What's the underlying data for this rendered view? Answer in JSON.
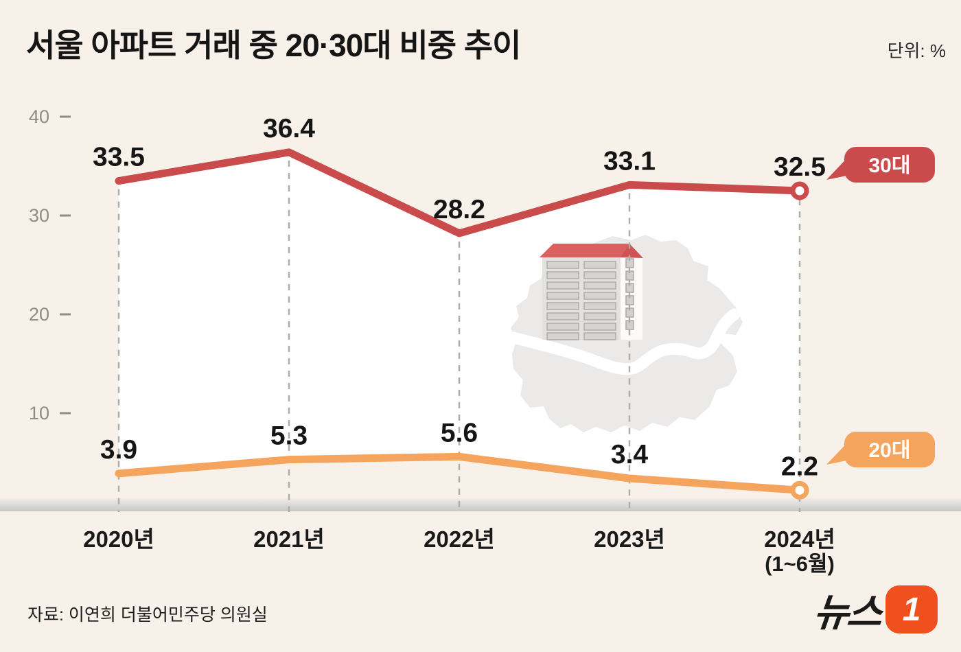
{
  "header": {
    "title": "서울 아파트 거래 중 20·30대 비중 추이",
    "unit_label": "단위: %"
  },
  "chart_data": {
    "type": "line",
    "title": "서울 아파트 거래 중 20·30대 비중 추이",
    "unit": "%",
    "categories": [
      {
        "label": "2020년",
        "sublabel": ""
      },
      {
        "label": "2021년",
        "sublabel": ""
      },
      {
        "label": "2022년",
        "sublabel": ""
      },
      {
        "label": "2023년",
        "sublabel": ""
      },
      {
        "label": "2024년",
        "sublabel": "(1~6월)"
      }
    ],
    "series": [
      {
        "name": "30대",
        "color": "#C94B4B",
        "values": [
          33.5,
          36.4,
          28.2,
          33.1,
          32.5
        ]
      },
      {
        "name": "20대",
        "color": "#F4A45C",
        "values": [
          3.9,
          5.3,
          5.6,
          3.4,
          2.2
        ]
      }
    ],
    "ylim": [
      0,
      40
    ],
    "yticks": [
      40,
      30,
      20,
      10
    ],
    "grid": "dashed-vertical",
    "legend_position": "right-bubbles",
    "marker": "ring-on-last-point"
  },
  "colors": {
    "background": "#F8F1EA",
    "between_area_fill": "#FFFFFF",
    "series_30s": "#C94B4B",
    "series_20s": "#F4A45C",
    "grid_line": "#AFADAA",
    "tick_text": "#8F8B87",
    "value_text": "#151515",
    "axis_band_top": "#EFECE8",
    "axis_band_bottom": "#C7C7C7",
    "logo_orange": "#F0501E"
  },
  "footer": {
    "source": "자료: 이연희 더불어민주당 의원실",
    "logo": {
      "text": "뉴스",
      "number": "1"
    }
  }
}
